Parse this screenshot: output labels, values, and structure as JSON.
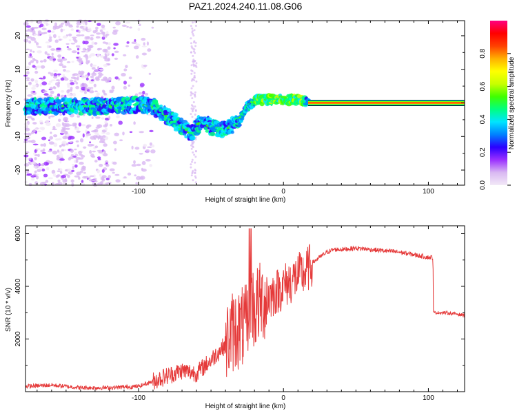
{
  "title": "PAZ1.2024.240.11.08.G06",
  "chart_data": [
    {
      "type": "heatmap",
      "xlabel": "Height of straight line (km)",
      "ylabel": "Frequency (Hz)",
      "xlim": [
        -178,
        125
      ],
      "ylim": [
        -24.5,
        24.5
      ],
      "xticks": [
        -100,
        0,
        100
      ],
      "yticks": [
        -20,
        -10,
        0,
        10,
        20
      ],
      "colorbar": {
        "label": "Normalized spectral amplitude",
        "range": [
          0,
          1
        ],
        "ticks": [
          "0.0",
          "0.2",
          "0.4",
          "0.6",
          "0.8"
        ],
        "colors": [
          "#f2e9f7",
          "#d9b8f2",
          "#9b30ff",
          "#2a00ff",
          "#0080ff",
          "#00e5ff",
          "#00ff80",
          "#40ff00",
          "#c8ff00",
          "#ffff00",
          "#ffb000",
          "#ff4000",
          "#ff0000",
          "#ff0080"
        ]
      },
      "ridge": [
        {
          "x": -178,
          "y": -1
        },
        {
          "x": -160,
          "y": -1
        },
        {
          "x": -140,
          "y": -1
        },
        {
          "x": -120,
          "y": -1
        },
        {
          "x": -100,
          "y": -0.5
        },
        {
          "x": -90,
          "y": -1
        },
        {
          "x": -80,
          "y": -4
        },
        {
          "x": -70,
          "y": -7
        },
        {
          "x": -64,
          "y": -9
        },
        {
          "x": -58,
          "y": -6
        },
        {
          "x": -50,
          "y": -7
        },
        {
          "x": -40,
          "y": -8
        },
        {
          "x": -30,
          "y": -5
        },
        {
          "x": -25,
          "y": -1
        },
        {
          "x": -18,
          "y": 1
        },
        {
          "x": -10,
          "y": 1
        },
        {
          "x": 0,
          "y": 1
        },
        {
          "x": 10,
          "y": 1
        },
        {
          "x": 17,
          "y": 0
        },
        {
          "x": 125,
          "y": 0
        }
      ],
      "line_band": {
        "x_start": 17,
        "x_end": 125,
        "y": 0,
        "amplitude": 1.0
      }
    },
    {
      "type": "line",
      "xlabel": "Height of straight line (km)",
      "ylabel": "SNR (10 * v/v)",
      "xlim": [
        -178,
        125
      ],
      "ylim": [
        0,
        6300
      ],
      "xticks": [
        -100,
        0,
        100
      ],
      "yticks": [
        2000,
        4000,
        6000
      ],
      "color": "#e53a3a",
      "series": [
        {
          "x": [
            -178,
            -160,
            -140,
            -120,
            -100,
            -90,
            -80,
            -70,
            -60,
            -50,
            -40,
            -35,
            -30,
            -25,
            -22,
            -20,
            -18,
            -15,
            -10,
            -5,
            0,
            5,
            10,
            15,
            20,
            25,
            30,
            35,
            40,
            50,
            60,
            70,
            80,
            90,
            100,
            103,
            104,
            110,
            120,
            125
          ],
          "y": [
            200,
            250,
            150,
            150,
            200,
            400,
            600,
            800,
            700,
            1200,
            1800,
            2300,
            2400,
            2500,
            3500,
            3000,
            3300,
            3400,
            3600,
            3800,
            4000,
            4200,
            4400,
            4500,
            4900,
            5100,
            5300,
            5400,
            5400,
            5450,
            5400,
            5350,
            5300,
            5200,
            5100,
            5100,
            3000,
            3000,
            2950,
            2900
          ]
        }
      ]
    }
  ]
}
